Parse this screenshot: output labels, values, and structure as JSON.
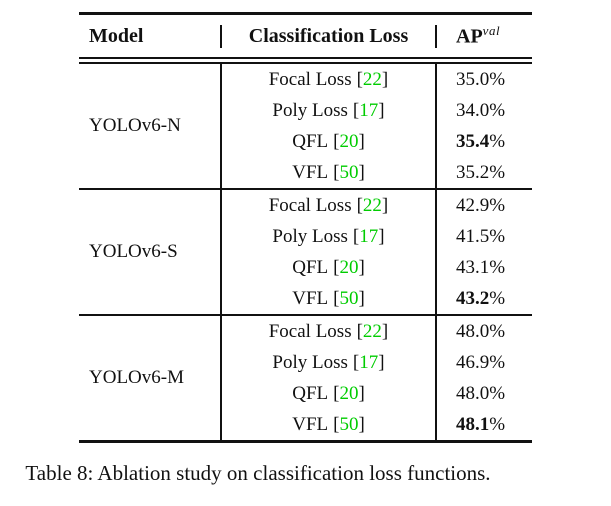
{
  "table": {
    "headers": {
      "model": "Model",
      "loss": "Classification Loss",
      "ap": "AP",
      "ap_superscript": "val"
    },
    "bracket_open": "[",
    "bracket_close": "]",
    "percent_sign": "%",
    "groups": [
      {
        "model": "YOLOv6-N",
        "rows": [
          {
            "loss": "Focal Loss",
            "cite": "22",
            "ap": "35.0",
            "bold": false
          },
          {
            "loss": "Poly Loss",
            "cite": "17",
            "ap": "34.0",
            "bold": false
          },
          {
            "loss": "QFL",
            "cite": "20",
            "ap": "35.4",
            "bold": true
          },
          {
            "loss": "VFL",
            "cite": "50",
            "ap": "35.2",
            "bold": false
          }
        ]
      },
      {
        "model": "YOLOv6-S",
        "rows": [
          {
            "loss": "Focal Loss",
            "cite": "22",
            "ap": "42.9",
            "bold": false
          },
          {
            "loss": "Poly Loss",
            "cite": "17",
            "ap": "41.5",
            "bold": false
          },
          {
            "loss": "QFL",
            "cite": "20",
            "ap": "43.1",
            "bold": false
          },
          {
            "loss": "VFL",
            "cite": "50",
            "ap": "43.2",
            "bold": true
          }
        ]
      },
      {
        "model": "YOLOv6-M",
        "rows": [
          {
            "loss": "Focal Loss",
            "cite": "22",
            "ap": "48.0",
            "bold": false
          },
          {
            "loss": "Poly Loss",
            "cite": "17",
            "ap": "46.9",
            "bold": false
          },
          {
            "loss": "QFL",
            "cite": "20",
            "ap": "48.0",
            "bold": false
          },
          {
            "loss": "VFL",
            "cite": "50",
            "ap": "48.1",
            "bold": true
          }
        ]
      }
    ]
  },
  "caption": "Table 8: Ablation study on classification loss functions.",
  "colors": {
    "citation_green": "#00cc00",
    "text": "#111111",
    "rule": "#111111",
    "background": "#ffffff"
  }
}
